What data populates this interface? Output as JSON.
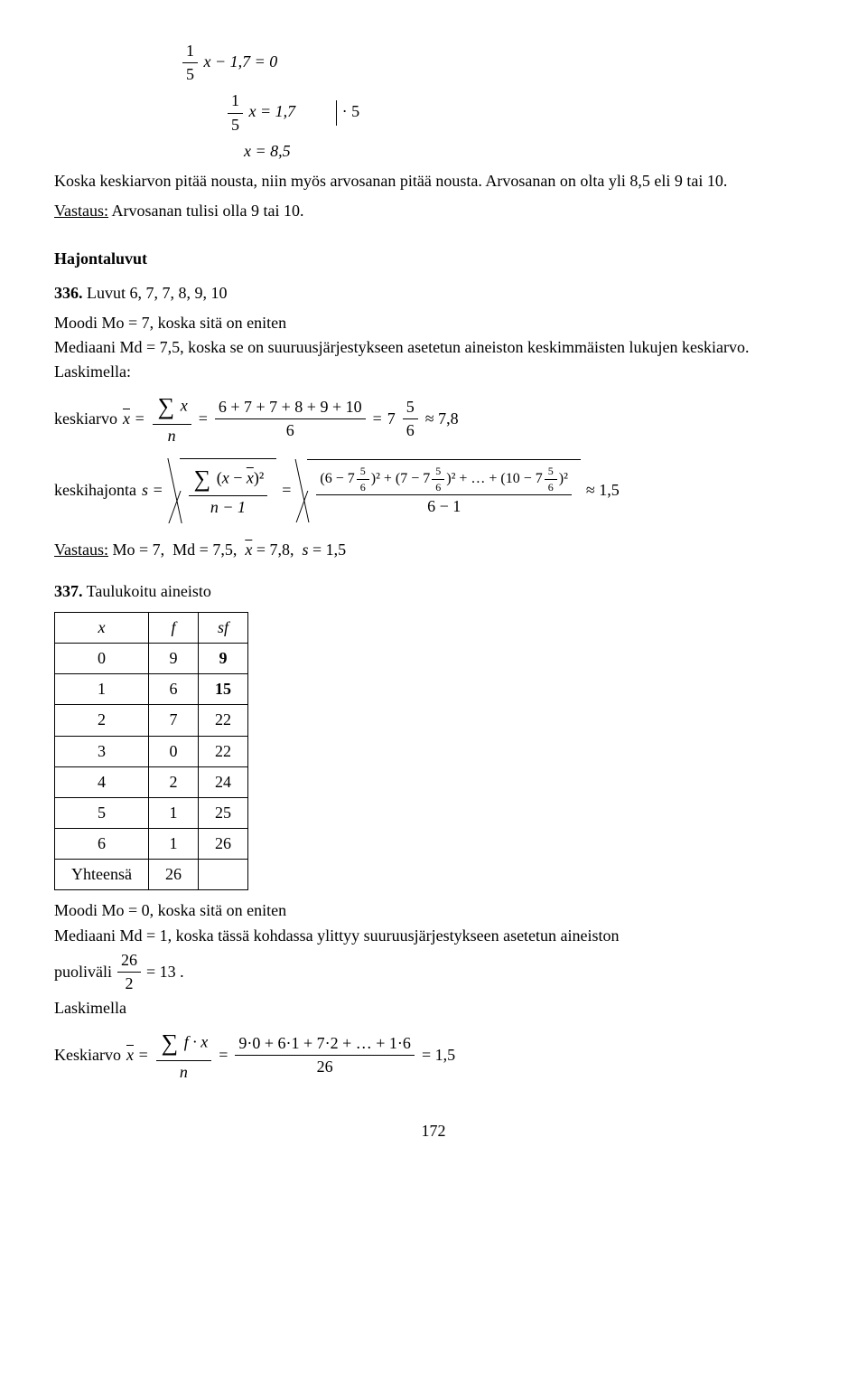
{
  "eq1": {
    "frac_num": "1",
    "frac_den": "5",
    "rest": "x − 1,7 = 0"
  },
  "eq2": {
    "frac_num": "1",
    "frac_den": "5",
    "rest": "x = 1,7",
    "mult": "· 5"
  },
  "eq3": "x = 8,5",
  "para1": "Koska keskiarvon pitää nousta, niin myös arvosanan pitää nousta. Arvosanan on olta yli 8,5 eli 9 tai 10.",
  "answer1_label": "Vastaus:",
  "answer1_text": " Arvosanan tulisi olla 9 tai 10.",
  "section_hajonta": "Hajontaluvut",
  "ex336_num": "336.",
  "ex336_text": " Luvut 6, 7, 7, 8, 9, 10",
  "moodi336": "Moodi Mo = 7, koska sitä on eniten",
  "mediaani336": "Mediaani Md = 7,5, koska se on suuruusjärjestykseen asetetun aineiston keskimmäisten lukujen keskiarvo.",
  "laskimella": "Laskimella:",
  "keskiarvo_label": "keskiarvo ",
  "keskiarvo_eq": {
    "lhs": "x̄ = ",
    "sum_num": "∑ x",
    "sum_den": "n",
    "mid_num": "6 + 7 + 7 + 8 + 9 + 10",
    "mid_den": "6",
    "rhs1": "7",
    "rhs_frac_num": "5",
    "rhs_frac_den": "6",
    "approx": "≈ 7,8"
  },
  "keskihajonta_label": "keskihajonta ",
  "keskihajonta_eq": {
    "lhs": "s = ",
    "r1_num": "∑ (x − x̄)²",
    "r1_den": "n − 1",
    "r2_body_num": "(6 − 7 ⁵⁄₆)² + (7 − 7 ⁵⁄₆)² + … + (10 − 7 ⁵⁄₆)²",
    "r2_body_den": "6 − 1",
    "approx": "≈ 1,5"
  },
  "answer336_label": "Vastaus:",
  "answer336_text": " Mo = 7,  Md = 7,5,  x̄ = 7,8,  s = 1,5",
  "ex337_num": "337.",
  "ex337_text": " Taulukoitu aineisto",
  "table337": {
    "headers": [
      "x",
      "f",
      "sf"
    ],
    "rows": [
      [
        "0",
        "9",
        "9"
      ],
      [
        "1",
        "6",
        "15"
      ],
      [
        "2",
        "7",
        "22"
      ],
      [
        "3",
        "0",
        "22"
      ],
      [
        "4",
        "2",
        "24"
      ],
      [
        "5",
        "1",
        "25"
      ],
      [
        "6",
        "1",
        "26"
      ],
      [
        "Yhteensä",
        "26",
        ""
      ]
    ],
    "bold_sf": [
      0,
      1
    ]
  },
  "moodi337": "Moodi Mo = 0, koska sitä on eniten",
  "mediaani337_a": "Mediaani Md = 1, koska tässä kohdassa ylittyy suuruusjärjestykseen asetetun aineiston",
  "puolivali_label": "puoliväli ",
  "puolivali_frac": {
    "num": "26",
    "den": "2"
  },
  "puolivali_rhs": " = 13 .",
  "laskimella2": "Laskimella",
  "keskiarvo337_label": "Keskiarvo ",
  "keskiarvo337": {
    "lhs": "x̄ = ",
    "f1_num": "∑ f · x",
    "f1_den": "n",
    "f2_num": "9·0 + 6·1 + 7·2 + … + 1·6",
    "f2_den": "26",
    "rhs": " = 1,5"
  },
  "pagenum": "172"
}
